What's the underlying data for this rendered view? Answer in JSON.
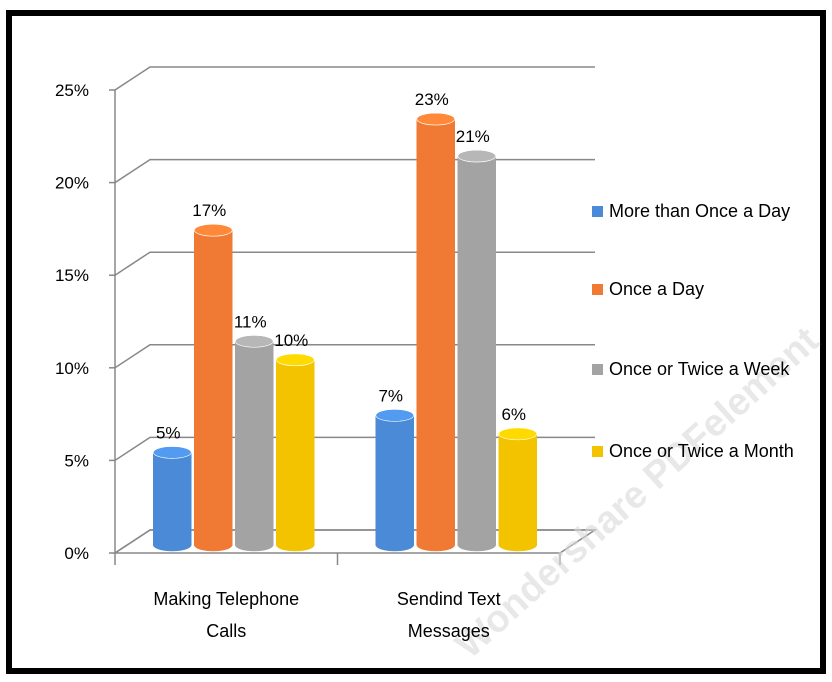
{
  "chart_data": {
    "type": "bar3d",
    "categories": [
      "Making Telephone Calls",
      "Sendind Text Messages"
    ],
    "series": [
      {
        "name": "More than Once a Day",
        "color": "#4a8ad6",
        "values": [
          5,
          7
        ],
        "value_labels": [
          "5%",
          "7%"
        ]
      },
      {
        "name": "Once a Day",
        "color": "#f07a33",
        "values": [
          17,
          23
        ],
        "value_labels": [
          "17%",
          "23%"
        ]
      },
      {
        "name": "Once or Twice a Week",
        "color": "#a3a3a3",
        "values": [
          11,
          21
        ],
        "value_labels": [
          "11%",
          "21%"
        ]
      },
      {
        "name": "Once or Twice a Month",
        "color": "#f4c300",
        "values": [
          10,
          6
        ],
        "value_labels": [
          "10%",
          "6%"
        ]
      }
    ],
    "ylim": [
      0,
      25
    ],
    "yticks": [
      {
        "value": 0,
        "label": "0%"
      },
      {
        "value": 5,
        "label": "5%"
      },
      {
        "value": 10,
        "label": "10%"
      },
      {
        "value": 15,
        "label": "15%"
      },
      {
        "value": 20,
        "label": "20%"
      },
      {
        "value": 25,
        "label": "25%"
      }
    ],
    "grid": true,
    "legend": "right",
    "watermark": "Wondershare PDFelement"
  }
}
